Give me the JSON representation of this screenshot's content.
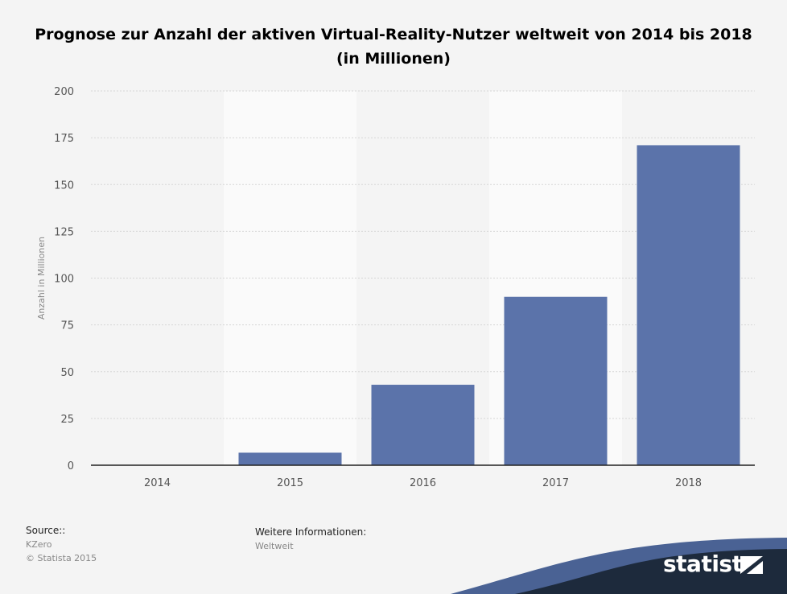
{
  "chart_data": {
    "type": "bar",
    "title": "Prognose zur Anzahl der aktiven Virtual-Reality-Nutzer weltweit von 2014 bis 2018 (in Millionen)",
    "ylabel": "Anzahl in Millionen",
    "xlabel": "",
    "categories": [
      "2014",
      "2015",
      "2016",
      "2017",
      "2018"
    ],
    "values": [
      0.2,
      6.7,
      43,
      90,
      171
    ],
    "ylim": [
      0,
      200
    ],
    "yticks": [
      0,
      25,
      50,
      75,
      100,
      125,
      150,
      175,
      200
    ],
    "grid": true,
    "bar_color": "#5b73aa"
  },
  "footer": {
    "source_heading": "Source::",
    "source_name": "KZero",
    "copyright": "© Statista 2015",
    "info_heading": "Weitere Informationen:",
    "info_value": "Weltweit",
    "brand": "statista"
  },
  "colors": {
    "background": "#f4f4f4",
    "band_dark": "#1d2a3c",
    "band_accent": "#4a6294"
  }
}
